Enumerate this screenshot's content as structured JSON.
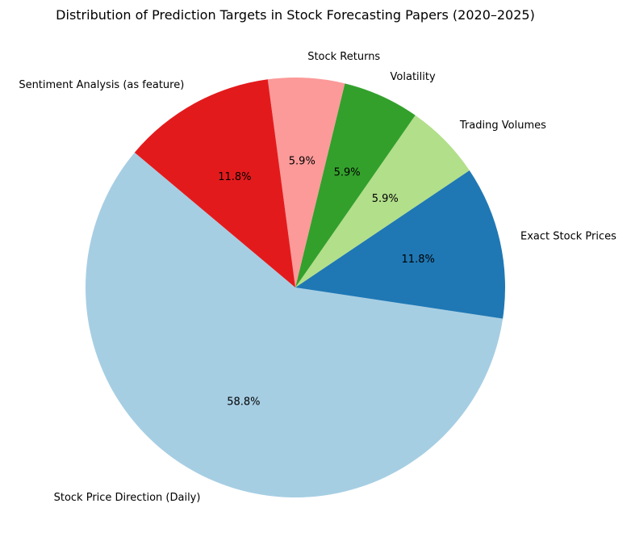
{
  "chart_data": {
    "type": "pie",
    "title": "Distribution of Prediction Targets in Stock Forecasting Papers (2020–2025)",
    "categories": [
      "Stock Price Direction (Daily)",
      "Exact Stock Prices",
      "Trading Volumes",
      "Volatility",
      "Stock Returns",
      "Sentiment Analysis (as feature)"
    ],
    "values": [
      58.8,
      11.8,
      5.9,
      5.9,
      5.9,
      11.8
    ],
    "value_labels": [
      "58.8%",
      "11.8%",
      "5.9%",
      "5.9%",
      "5.9%",
      "11.8%"
    ],
    "colors": [
      "#a6cee3",
      "#1f78b4",
      "#b2df8a",
      "#33a02c",
      "#fb9a99",
      "#e31a1c"
    ],
    "start_angle_deg": 140,
    "direction": "counterclockwise",
    "legend": "none"
  }
}
